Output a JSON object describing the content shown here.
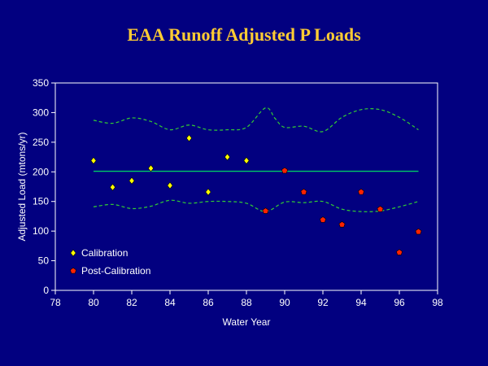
{
  "colors": {
    "background": "#020080",
    "title": "#ffcc33",
    "axis": "#ffffff",
    "calibration": "#ffff00",
    "post_calibration": "#ff2200",
    "reference_line": "#00cc66",
    "bounds": "#33cc33"
  },
  "chart_data": {
    "type": "scatter",
    "title": "EAA Runoff Adjusted P Loads",
    "xlabel": "Water Year",
    "ylabel": "Adjusted Load (mtons/yr)",
    "xlim": [
      78,
      98
    ],
    "ylim": [
      0,
      350
    ],
    "xticks": [
      78,
      80,
      82,
      84,
      86,
      88,
      90,
      92,
      94,
      96,
      98
    ],
    "yticks": [
      0,
      50,
      100,
      150,
      200,
      250,
      300,
      350
    ],
    "legend_position": "bottom-left",
    "grid": false,
    "series": [
      {
        "name": "Calibration",
        "marker": "diamond",
        "color": "#ffff00",
        "points": [
          [
            80,
            219
          ],
          [
            81,
            174
          ],
          [
            82,
            185
          ],
          [
            83,
            206
          ],
          [
            84,
            177
          ],
          [
            85,
            257
          ],
          [
            86,
            166
          ],
          [
            87,
            225
          ],
          [
            88,
            219
          ]
        ]
      },
      {
        "name": "Post-Calibration",
        "marker": "pentagon",
        "color": "#ff2200",
        "points": [
          [
            89,
            134
          ],
          [
            90,
            202
          ],
          [
            91,
            166
          ],
          [
            92,
            119
          ],
          [
            93,
            111
          ],
          [
            94,
            166
          ],
          [
            95,
            137
          ],
          [
            96,
            64
          ],
          [
            97,
            99
          ]
        ]
      }
    ],
    "reference_line": {
      "x": [
        80,
        97
      ],
      "y": 201
    },
    "upper_bound": [
      [
        80,
        287
      ],
      [
        81,
        282
      ],
      [
        82,
        291
      ],
      [
        83,
        285
      ],
      [
        84,
        271
      ],
      [
        85,
        279
      ],
      [
        86,
        271
      ],
      [
        87,
        271
      ],
      [
        88,
        275
      ],
      [
        89,
        308
      ],
      [
        89.5,
        290
      ],
      [
        90,
        275
      ],
      [
        91,
        277
      ],
      [
        92,
        268
      ],
      [
        93,
        292
      ],
      [
        94,
        305
      ],
      [
        95,
        305
      ],
      [
        96,
        292
      ],
      [
        97,
        271
      ]
    ],
    "lower_bound": [
      [
        80,
        141
      ],
      [
        81,
        145
      ],
      [
        82,
        138
      ],
      [
        83,
        142
      ],
      [
        84,
        152
      ],
      [
        85,
        147
      ],
      [
        86,
        150
      ],
      [
        87,
        150
      ],
      [
        88,
        147
      ],
      [
        89,
        133
      ],
      [
        90,
        149
      ],
      [
        91,
        148
      ],
      [
        92,
        150
      ],
      [
        93,
        137
      ],
      [
        94,
        133
      ],
      [
        95,
        134
      ],
      [
        96,
        141
      ],
      [
        97,
        150
      ]
    ]
  }
}
